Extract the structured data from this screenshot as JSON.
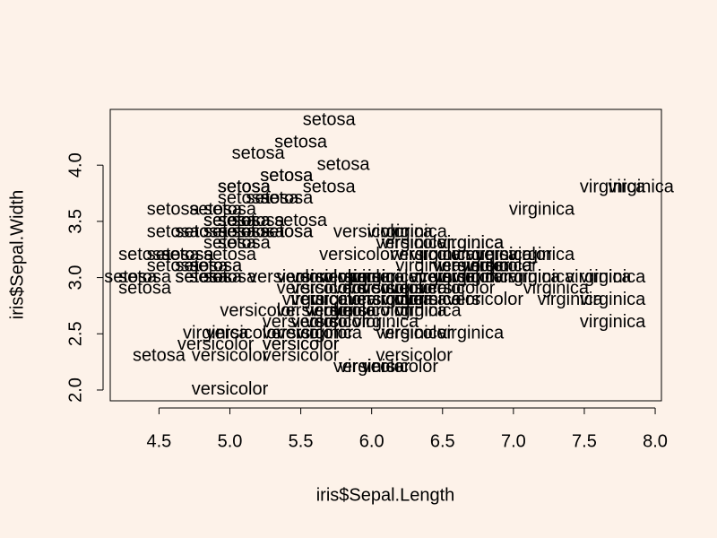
{
  "chart_data": {
    "type": "scatter",
    "x_label": "iris$Sepal.Length",
    "y_label": "iris$Sepal.Width",
    "color": "#000000",
    "xlim": [
      4.156,
      8.044
    ],
    "ylim": [
      1.904,
      4.496
    ],
    "xticks": [
      4.5,
      {
        "value": 5,
        "label": "5.0"
      },
      5.5,
      {
        "value": 6,
        "label": "6.0"
      },
      6.5,
      {
        "value": 7,
        "label": "7.0"
      },
      7.5,
      {
        "value": 8,
        "label": "8.0"
      }
    ],
    "yticks": [
      {
        "value": 2,
        "label": "2.0"
      },
      2.5,
      {
        "value": 3,
        "label": "3.0"
      },
      3.5,
      {
        "value": 4,
        "label": "4.0"
      }
    ],
    "series": [
      {
        "name": "setosa",
        "x": [
          5.1,
          4.9,
          4.7,
          4.6,
          5.0,
          5.4,
          4.6,
          5.0,
          4.4,
          4.9,
          5.4,
          4.8,
          4.8,
          4.3,
          5.8,
          5.7,
          5.4,
          5.1,
          5.7,
          5.1,
          5.4,
          5.1,
          4.6,
          5.1,
          4.8,
          5.0,
          5.0,
          5.2,
          5.2,
          4.7,
          4.8,
          5.4,
          5.2,
          5.5,
          4.9,
          5.0,
          5.5,
          4.9,
          4.4,
          5.1,
          5.0,
          4.5,
          4.4,
          5.0,
          5.1,
          4.8,
          5.1,
          4.6,
          5.3,
          5.0
        ],
        "values": [
          3.5,
          3.0,
          3.2,
          3.1,
          3.6,
          3.9,
          3.4,
          3.4,
          2.9,
          3.1,
          3.7,
          3.4,
          3.0,
          3.0,
          4.0,
          4.4,
          3.9,
          3.5,
          3.8,
          3.8,
          3.4,
          3.7,
          3.6,
          3.3,
          3.4,
          3.0,
          3.4,
          3.5,
          3.4,
          3.2,
          3.1,
          3.4,
          4.1,
          4.2,
          3.1,
          3.2,
          3.5,
          3.6,
          3.0,
          3.4,
          3.5,
          2.3,
          3.2,
          3.5,
          3.8,
          3.0,
          3.8,
          3.2,
          3.7,
          3.3
        ]
      },
      {
        "name": "versicolor",
        "x": [
          7.0,
          6.4,
          6.9,
          5.5,
          6.5,
          5.7,
          6.3,
          4.9,
          6.6,
          5.2,
          5.0,
          5.9,
          6.0,
          6.1,
          5.6,
          6.7,
          5.6,
          5.8,
          6.2,
          5.6,
          5.9,
          6.1,
          6.3,
          6.1,
          6.4,
          6.6,
          6.8,
          6.7,
          6.0,
          5.7,
          5.5,
          5.5,
          5.8,
          6.0,
          5.4,
          6.0,
          6.7,
          6.3,
          5.6,
          5.5,
          5.5,
          6.1,
          5.8,
          5.0,
          5.6,
          5.7,
          5.7,
          6.2,
          5.1,
          5.7
        ],
        "values": [
          3.2,
          3.2,
          3.1,
          2.3,
          2.8,
          2.8,
          3.3,
          2.4,
          2.9,
          2.7,
          2.0,
          3.0,
          2.2,
          2.9,
          2.9,
          3.1,
          3.0,
          2.7,
          2.2,
          2.5,
          3.2,
          2.8,
          2.5,
          2.8,
          2.9,
          3.0,
          2.8,
          3.0,
          2.9,
          2.6,
          2.4,
          2.4,
          2.7,
          2.7,
          3.0,
          3.4,
          3.1,
          2.3,
          3.0,
          2.5,
          2.6,
          3.0,
          2.6,
          2.3,
          2.7,
          3.0,
          2.9,
          2.9,
          2.5,
          2.8
        ]
      },
      {
        "name": "virginica",
        "x": [
          6.3,
          5.8,
          7.1,
          6.3,
          6.5,
          7.6,
          4.9,
          7.3,
          6.7,
          7.2,
          6.5,
          6.4,
          6.8,
          5.7,
          5.8,
          6.4,
          6.5,
          7.7,
          7.7,
          6.0,
          6.9,
          5.6,
          7.7,
          6.3,
          6.7,
          7.2,
          6.2,
          6.1,
          6.4,
          7.2,
          7.4,
          7.9,
          6.4,
          6.3,
          6.1,
          7.7,
          6.3,
          6.4,
          6.0,
          6.9,
          6.7,
          6.9,
          5.8,
          6.8,
          6.7,
          6.7,
          6.3,
          6.5,
          6.2,
          5.9
        ],
        "values": [
          3.3,
          2.7,
          3.0,
          2.9,
          3.0,
          3.0,
          2.5,
          2.9,
          2.5,
          3.6,
          3.2,
          2.7,
          3.0,
          2.5,
          2.8,
          3.2,
          3.0,
          3.8,
          2.6,
          2.2,
          3.2,
          2.8,
          2.8,
          2.7,
          3.3,
          3.2,
          2.8,
          3.0,
          2.8,
          3.0,
          2.8,
          3.8,
          2.8,
          2.8,
          2.6,
          3.0,
          3.4,
          3.1,
          3.0,
          3.1,
          3.1,
          3.1,
          2.7,
          3.2,
          3.3,
          3.0,
          2.5,
          3.0,
          3.4,
          3.0
        ]
      }
    ]
  }
}
